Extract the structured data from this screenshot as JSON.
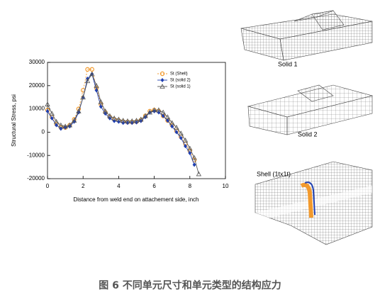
{
  "chart_data": {
    "type": "line",
    "ylabel": "Structural Stress, psi",
    "xlabel": "Distance from weld end on attachement side, inch",
    "x": [
      0,
      0.25,
      0.5,
      0.75,
      1,
      1.25,
      1.5,
      1.75,
      2,
      2.25,
      2.5,
      2.75,
      3,
      3.25,
      3.5,
      3.75,
      4,
      4.25,
      4.5,
      4.75,
      5,
      5.25,
      5.5,
      5.75,
      6,
      6.25,
      6.5,
      6.75,
      7,
      7.25,
      7.5,
      7.75,
      8,
      8.25,
      8.5
    ],
    "series": [
      {
        "name": "St (Shell)",
        "color": "#f29a2e",
        "marker": "circle",
        "dashed": true,
        "values": [
          9500,
          6500,
          3500,
          2000,
          2000,
          3000,
          5500,
          10000,
          18000,
          27000,
          27000,
          19000,
          12000,
          8500,
          6500,
          5500,
          5000,
          4500,
          4300,
          4300,
          4500,
          5200,
          7000,
          9000,
          9500,
          9000,
          7000,
          5000,
          3000,
          500,
          -2000,
          -5000,
          -8000,
          -12000,
          null
        ]
      },
      {
        "name": "St (solid 2)",
        "color": "#1f3fb0",
        "marker": "diamond",
        "dashed": false,
        "values": [
          9000,
          6000,
          3000,
          1500,
          2000,
          2500,
          4500,
          8500,
          15000,
          23000,
          25000,
          18000,
          11000,
          8000,
          6000,
          4800,
          4500,
          4000,
          4000,
          4000,
          4200,
          4800,
          6500,
          8500,
          9000,
          8500,
          7000,
          5000,
          2500,
          0,
          -2500,
          -6000,
          -9000,
          -14000,
          null
        ]
      },
      {
        "name": "St (solid 1)",
        "color": "#555555",
        "marker": "triangle",
        "dashed": false,
        "values": [
          12000,
          8000,
          4500,
          3000,
          2500,
          3000,
          5000,
          9000,
          15000,
          22000,
          25000,
          20000,
          13000,
          9000,
          7000,
          6000,
          5500,
          5000,
          4800,
          4800,
          5000,
          5500,
          7000,
          8500,
          9500,
          9500,
          8500,
          6500,
          4000,
          2000,
          -500,
          -3500,
          -7000,
          -11000,
          -18000
        ]
      }
    ],
    "xlim": [
      0,
      10
    ],
    "xticks": [
      0,
      2,
      4,
      6,
      8,
      10
    ],
    "ylim": [
      -20000,
      30000
    ],
    "yticks": [
      -20000,
      -10000,
      0,
      10000,
      20000,
      30000
    ]
  },
  "figure": {
    "labels": [
      "Solid 1",
      "Solid 2",
      "Shell (1tx1t)"
    ],
    "caption": "图 6 不同单元尺寸和单元类型的结构应力"
  }
}
